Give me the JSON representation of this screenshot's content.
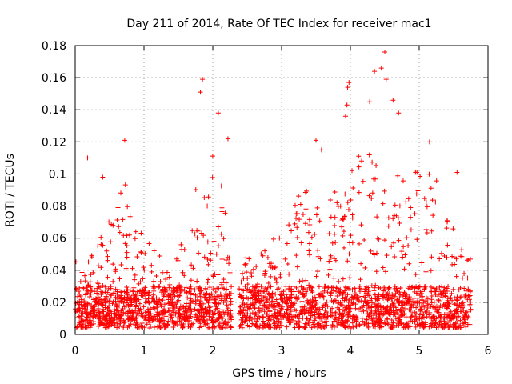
{
  "chart_data": {
    "type": "scatter",
    "title": "Day 211 of 2014, Rate Of TEC Index for receiver mac1",
    "xlabel": "GPS time / hours",
    "ylabel": "ROTI / TECUs",
    "xlim": [
      0,
      6
    ],
    "ylim": [
      0,
      0.18
    ],
    "grid": true,
    "marker": "+",
    "marker_color": "#ff0000",
    "x_ticks": [
      0,
      1,
      2,
      3,
      4,
      5,
      6
    ],
    "x_tick_labels": [
      "0",
      "1",
      "2",
      "3",
      "4",
      "5",
      "6"
    ],
    "y_ticks": [
      0,
      0.02,
      0.04,
      0.06,
      0.08,
      0.1,
      0.12,
      0.14,
      0.16,
      0.18
    ],
    "y_tick_labels": [
      "0",
      "0.02",
      "0.04",
      "0.06",
      "0.08",
      "0.1",
      "0.12",
      "0.14",
      "0.16",
      "0.18"
    ],
    "series": [
      {
        "name": "ROTI",
        "x_range": [
          0.0,
          5.75
        ],
        "x_gap": [
          2.27,
          2.38
        ],
        "notable_points": [
          {
            "x": 1.85,
            "y": 0.159
          },
          {
            "x": 1.82,
            "y": 0.151
          },
          {
            "x": 2.08,
            "y": 0.138
          },
          {
            "x": 2.22,
            "y": 0.122
          },
          {
            "x": 0.72,
            "y": 0.121
          },
          {
            "x": 3.98,
            "y": 0.157
          },
          {
            "x": 3.96,
            "y": 0.154
          },
          {
            "x": 3.95,
            "y": 0.143
          },
          {
            "x": 3.93,
            "y": 0.136
          },
          {
            "x": 4.5,
            "y": 0.176
          },
          {
            "x": 4.45,
            "y": 0.166
          },
          {
            "x": 4.52,
            "y": 0.159
          },
          {
            "x": 4.35,
            "y": 0.164
          },
          {
            "x": 4.28,
            "y": 0.145
          },
          {
            "x": 4.62,
            "y": 0.146
          },
          {
            "x": 4.7,
            "y": 0.138
          },
          {
            "x": 5.15,
            "y": 0.12
          },
          {
            "x": 3.5,
            "y": 0.121
          },
          {
            "x": 3.58,
            "y": 0.115
          },
          {
            "x": 5.55,
            "y": 0.101
          },
          {
            "x": 0.18,
            "y": 0.11
          },
          {
            "x": 0.4,
            "y": 0.098
          }
        ]
      }
    ]
  }
}
